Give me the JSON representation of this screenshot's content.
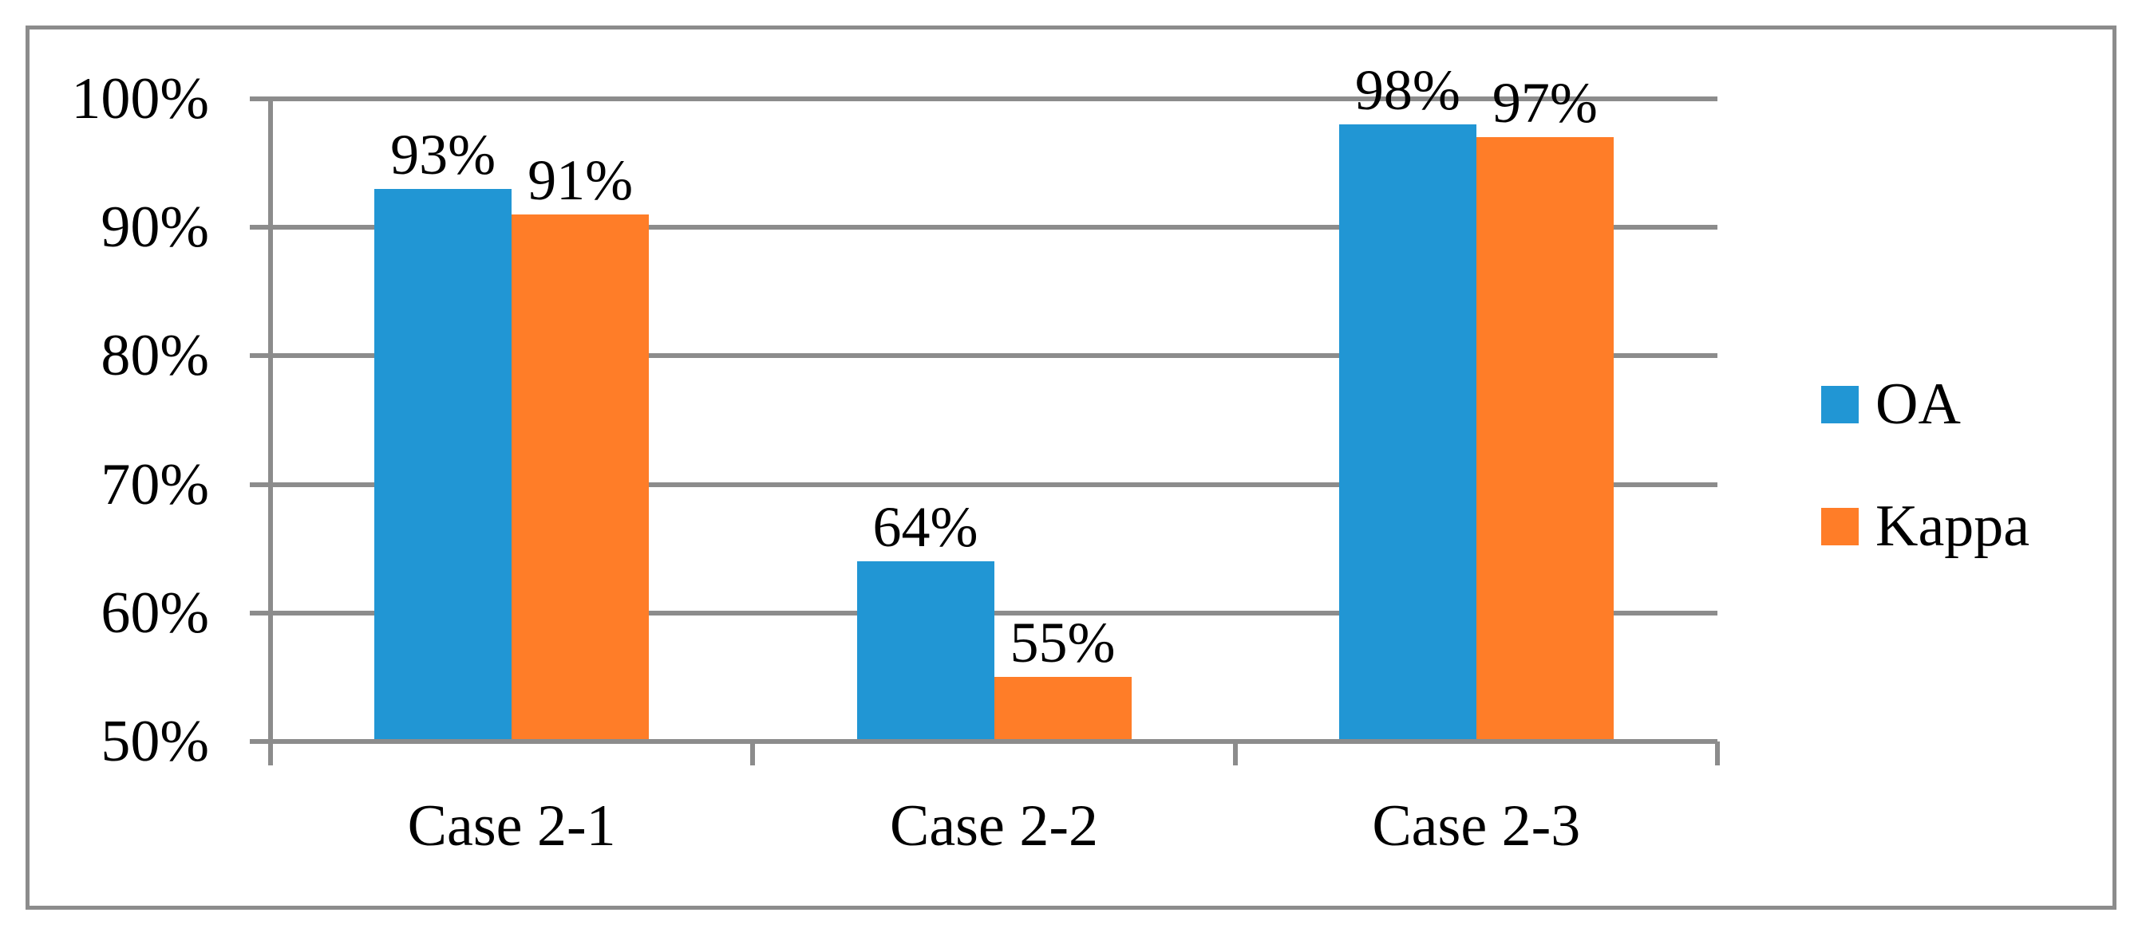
{
  "chart_data": {
    "type": "bar",
    "title": "",
    "xlabel": "",
    "ylabel": "",
    "categories": [
      "Case 2-1",
      "Case 2-2",
      "Case 2-3"
    ],
    "series": [
      {
        "name": "OA",
        "color": "#2196d4",
        "values": [
          93,
          64,
          98
        ],
        "data_labels": [
          "93%",
          "64%",
          "98%"
        ]
      },
      {
        "name": "Kappa",
        "color": "#ff7d28",
        "values": [
          91,
          55,
          97
        ],
        "data_labels": [
          "91%",
          "55%",
          "97%"
        ]
      }
    ],
    "ylim": [
      50,
      100
    ],
    "y_ticks": [
      {
        "value": 100,
        "label": "100%"
      },
      {
        "value": 90,
        "label": "90%"
      },
      {
        "value": 80,
        "label": "80%"
      },
      {
        "value": 70,
        "label": "70%"
      },
      {
        "value": 60,
        "label": "60%"
      },
      {
        "value": 50,
        "label": "50%"
      }
    ],
    "grid": true,
    "legend_position": "right",
    "legend": [
      "OA",
      "Kappa"
    ],
    "colors": {
      "gridline": "#8c8c8c",
      "border": "#8c8c8c",
      "text": "#000000",
      "background": "#ffffff"
    }
  }
}
